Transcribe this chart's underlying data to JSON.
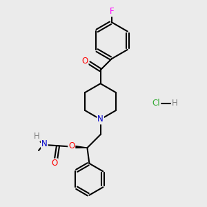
{
  "background_color": "#ebebeb",
  "line_color": "#000000",
  "bond_width": 1.5,
  "fig_size": [
    3.0,
    3.0
  ],
  "dpi": 100,
  "colors": {
    "O": "#ff0000",
    "N": "#0000cc",
    "F": "#ff00ff",
    "H": "#808080",
    "Cl": "#33aa33",
    "C": "#000000"
  },
  "fs": 8.5
}
